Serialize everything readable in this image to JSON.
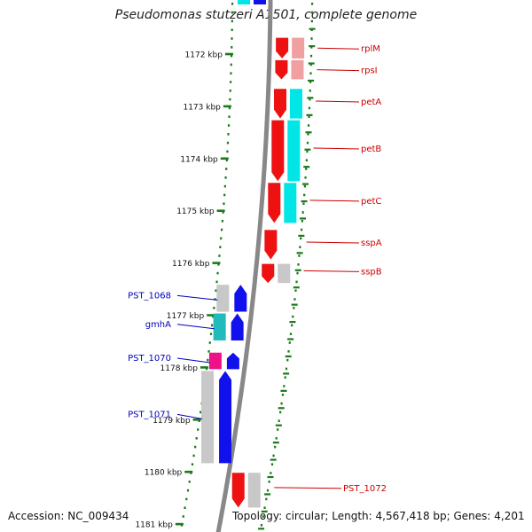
{
  "genome_title": "Pseudomonas stutzeri A1501, complete genome",
  "footer": {
    "accession": "Accession: NC_009434",
    "topology": "Topology: circular; Length: 4,567,418 bp; Genes: 4,201"
  },
  "colors": {
    "plus_strand_label": "#cc0000",
    "minus_strand_label": "#0000bb",
    "cds_red": "#ee1111",
    "cds_blue": "#1111ee",
    "cyan": "#00e5e5",
    "teal": "#22bbbb",
    "magenta": "#ee1188",
    "pink": "#f0a0a0",
    "gray": "#c8c8c8",
    "backbone": "#888888",
    "tick": "#1a7a1a"
  },
  "ruler": {
    "unit": "kbp",
    "labels": [
      "1172 kbp",
      "1173 kbp",
      "1174 kbp",
      "1175 kbp",
      "1176 kbp",
      "1177 kbp",
      "1178 kbp",
      "1179 kbp",
      "1180 kbp",
      "1181 kbp"
    ]
  },
  "plus_strand_genes": [
    {
      "label": "rplM",
      "start_kbp": 1171.67,
      "end_kbp": 1172.1,
      "color": "red",
      "cog": "pink"
    },
    {
      "label": "rpsI",
      "start_kbp": 1172.1,
      "end_kbp": 1172.5,
      "color": "red",
      "cog": "pink"
    },
    {
      "label": "petA",
      "start_kbp": 1172.65,
      "end_kbp": 1173.25,
      "color": "red",
      "cog": "cyan"
    },
    {
      "label": "petB",
      "start_kbp": 1173.25,
      "end_kbp": 1174.45,
      "color": "red",
      "cog": "cyan"
    },
    {
      "label": "petC",
      "start_kbp": 1174.45,
      "end_kbp": 1175.25,
      "color": "red",
      "cog": "cyan"
    },
    {
      "label": "sspA",
      "start_kbp": 1175.35,
      "end_kbp": 1175.95,
      "color": "red",
      "cog": "none"
    },
    {
      "label": "sspB",
      "start_kbp": 1176.0,
      "end_kbp": 1176.4,
      "color": "red",
      "cog": "gray"
    },
    {
      "label": "PST_1072",
      "start_kbp": 1180.0,
      "end_kbp": 1180.7,
      "color": "red",
      "cog": "gray"
    }
  ],
  "minus_strand_genes": [
    {
      "label": "PST_1068",
      "start_kbp": 1176.4,
      "end_kbp": 1176.95,
      "color": "blue",
      "cog": "gray"
    },
    {
      "label": "gmhA",
      "start_kbp": 1176.95,
      "end_kbp": 1177.5,
      "color": "blue",
      "cog": "teal"
    },
    {
      "label": "PST_1070",
      "start_kbp": 1177.7,
      "end_kbp": 1178.05,
      "color": "blue",
      "cog": "magenta"
    },
    {
      "label": "PST_1071",
      "start_kbp": 1178.05,
      "end_kbp": 1179.85,
      "color": "blue",
      "cog": "gray"
    }
  ]
}
